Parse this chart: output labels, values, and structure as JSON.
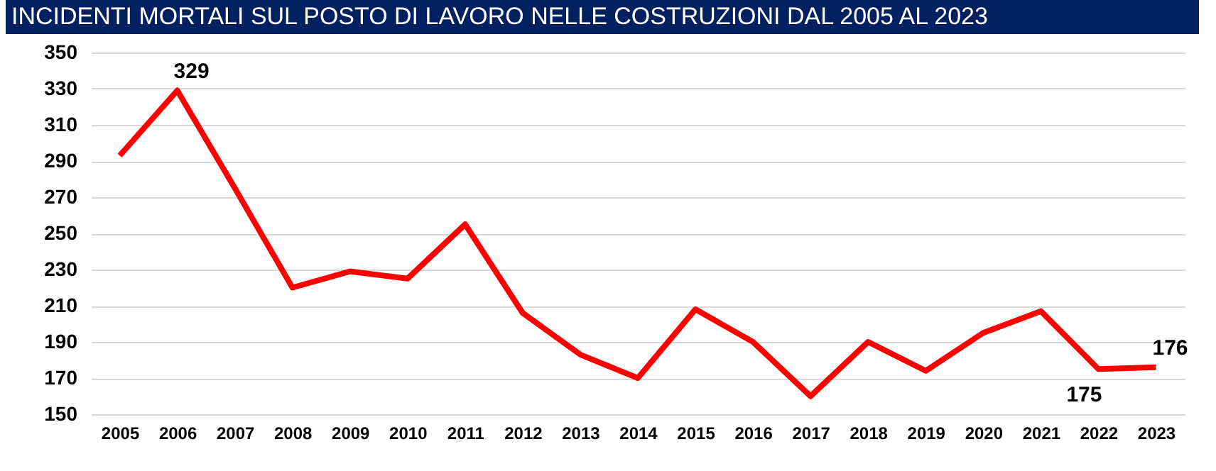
{
  "chart_data": {
    "type": "line",
    "title": "INCIDENTI MORTALI SUL POSTO DI LAVORO NELLE COSTRUZIONI DAL 2005 AL 2023",
    "categories": [
      "2005",
      "2006",
      "2007",
      "2008",
      "2009",
      "2010",
      "2011",
      "2012",
      "2013",
      "2014",
      "2015",
      "2016",
      "2017",
      "2018",
      "2019",
      "2020",
      "2021",
      "2022",
      "2023"
    ],
    "series": [
      {
        "color": "#ff0000",
        "values": [
          293,
          329,
          275,
          220,
          229,
          225,
          255,
          206,
          183,
          170,
          208,
          190,
          160,
          190,
          174,
          195,
          207,
          175,
          176
        ],
        "value_labels": [
          null,
          "329",
          null,
          null,
          null,
          null,
          null,
          null,
          null,
          null,
          null,
          null,
          null,
          null,
          null,
          null,
          null,
          "175",
          "176"
        ]
      }
    ],
    "ylim": [
      150,
      350
    ],
    "yticks": [
      150,
      170,
      190,
      210,
      230,
      250,
      270,
      290,
      310,
      330,
      350
    ],
    "grid": "y",
    "marker": "none",
    "line_style": "solid"
  }
}
